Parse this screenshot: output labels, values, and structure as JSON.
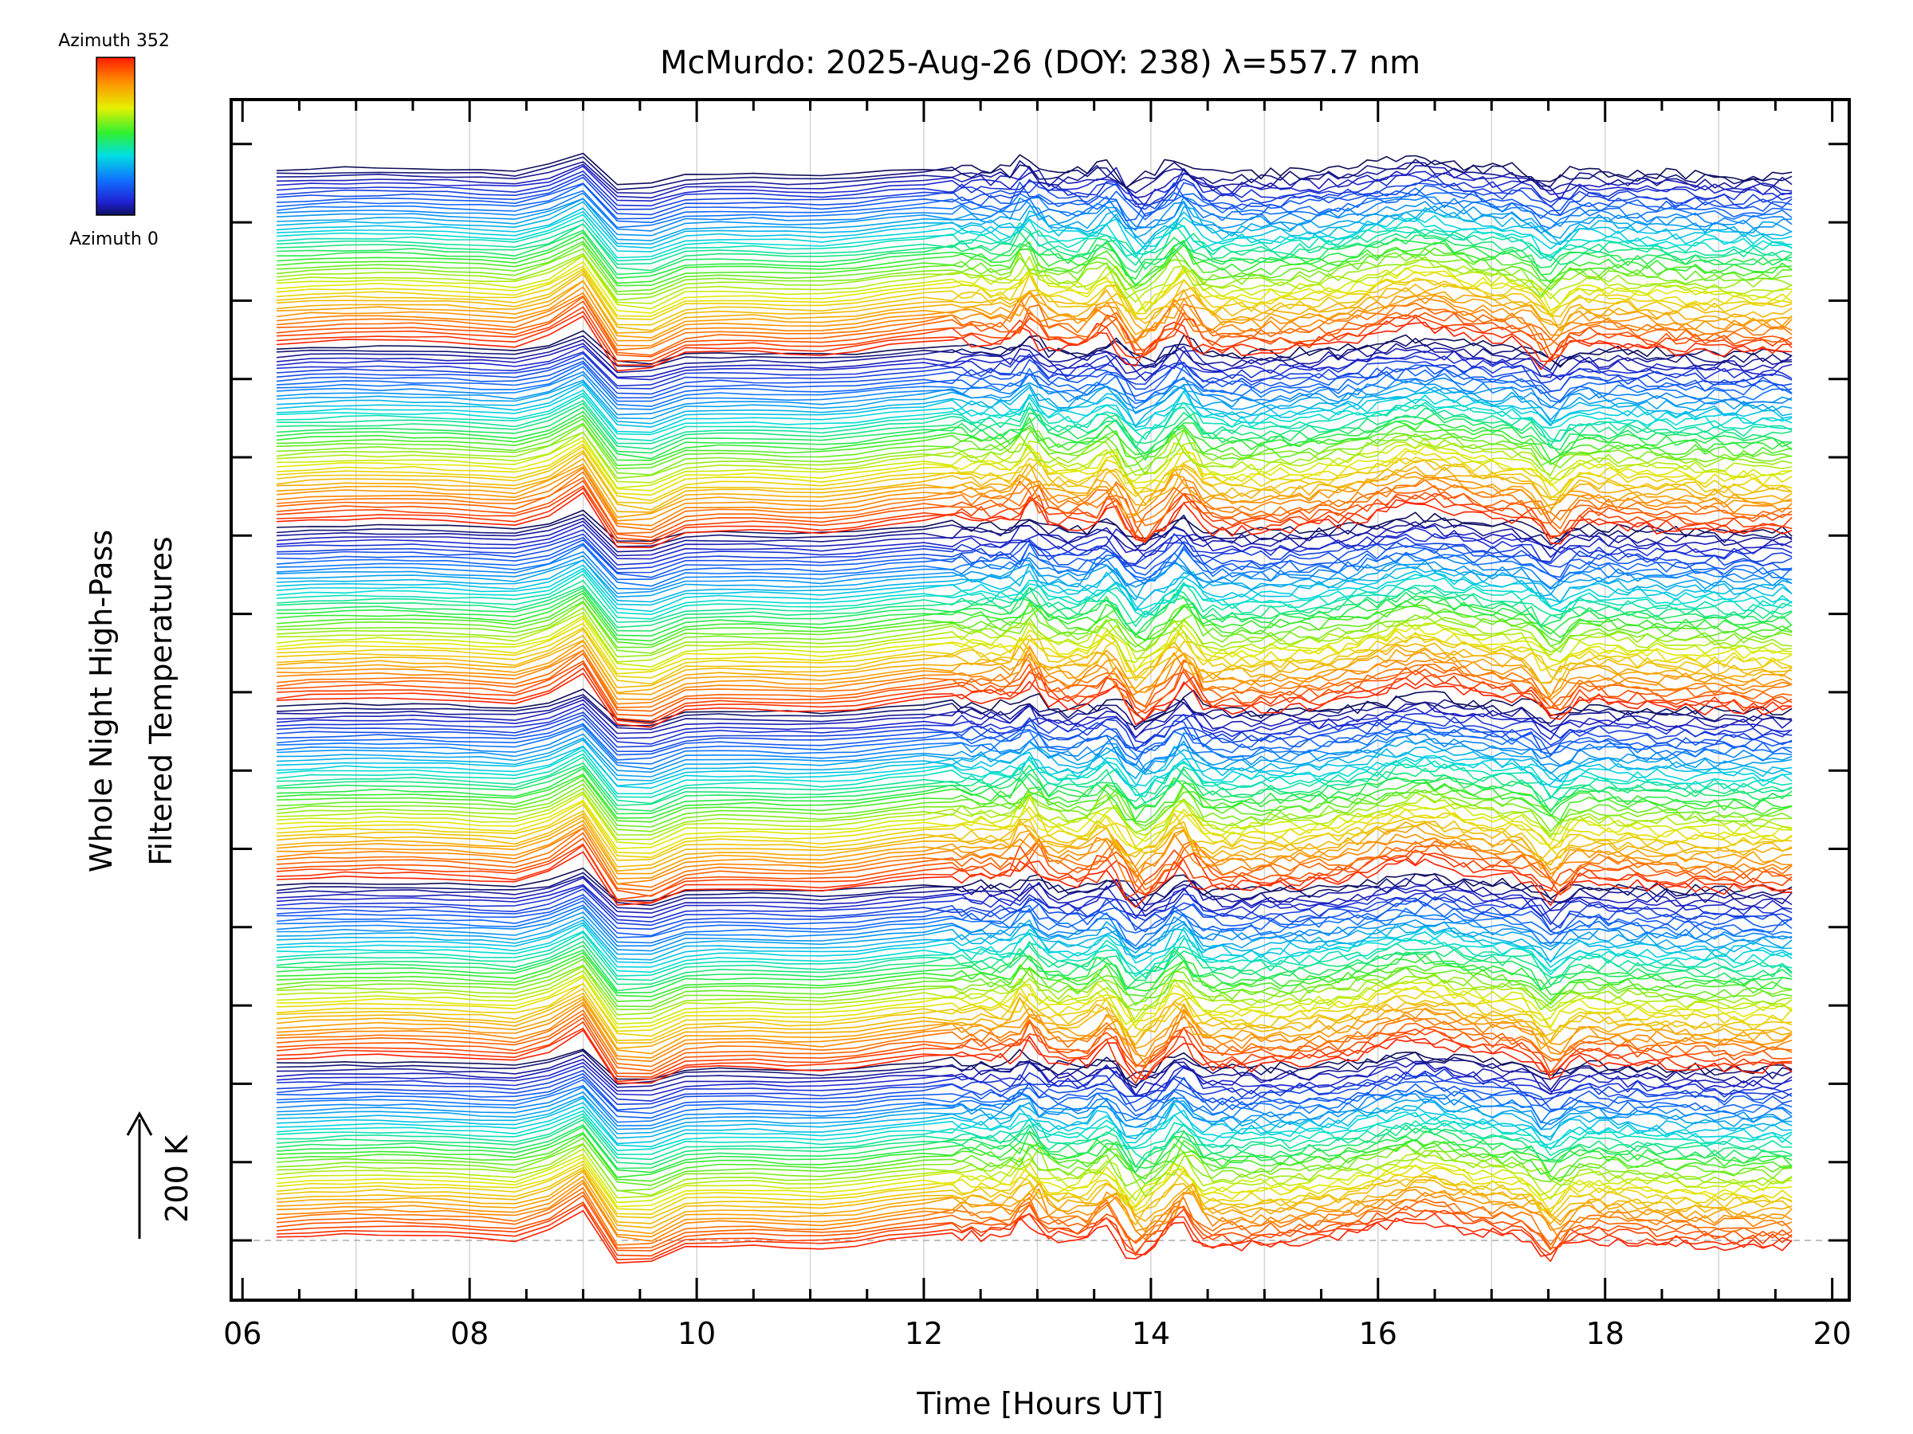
{
  "chart_data": {
    "type": "line",
    "title": "McMurdo: 2025-Aug-26 (DOY: 238) λ=557.7 nm",
    "xlabel": "Time [Hours UT]",
    "ylabel_line1": "Whole Night High-Pass",
    "ylabel_line2": "Filtered Temperatures",
    "xlim": [
      5.9,
      20.15
    ],
    "x_range_data": [
      6.3,
      19.65
    ],
    "x_ticks": [
      6,
      8,
      10,
      12,
      14,
      16,
      18,
      20
    ],
    "x_tick_labels": [
      "06",
      "08",
      "10",
      "12",
      "14",
      "16",
      "18",
      "20"
    ],
    "scale_bar_label": "200 K",
    "colorbar": {
      "top_label": "Azimuth 352",
      "bottom_label": "Azimuth 0",
      "colors": [
        "#ff0000",
        "#ff8000",
        "#ffff00",
        "#00ff00",
        "#00ffff",
        "#0080ff",
        "#0000ff",
        "#000040"
      ]
    },
    "series_description": "Stacked high-pass filtered temperature traces, one per azimuth (0 to 352 deg, 8 deg step), offset vertically; repeated in six stacked groups",
    "azimuth_start": 0,
    "azimuth_end": 352,
    "azimuth_step": 8,
    "group_count": 6,
    "features": {
      "peak_time": 9.0,
      "dip_time": 9.3,
      "active_after": 12.2,
      "spike_times": [
        13.0,
        13.7,
        14.3,
        16.4,
        17.6
      ]
    }
  }
}
